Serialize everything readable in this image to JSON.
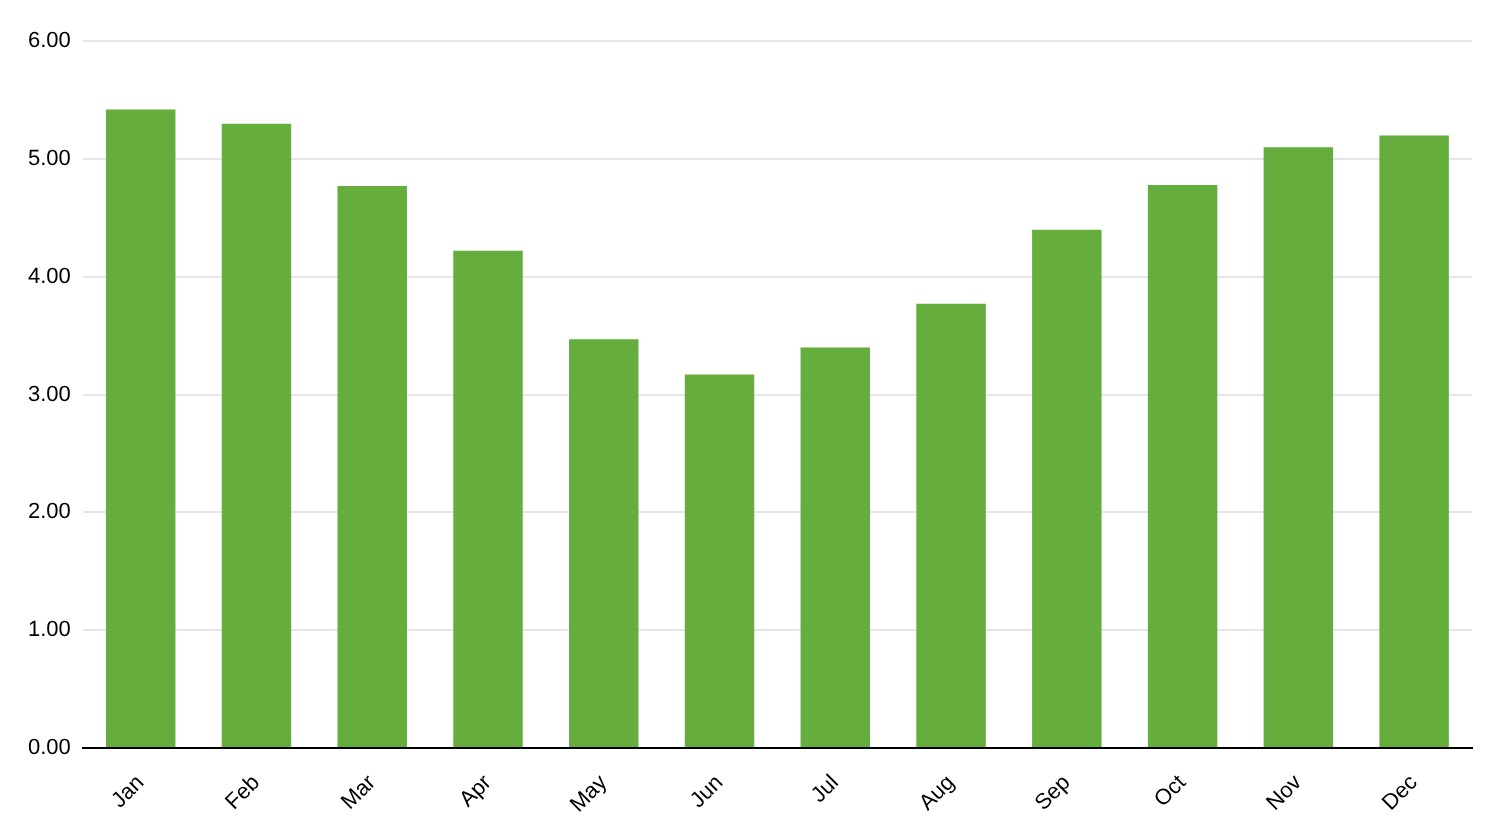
{
  "chart_data": {
    "type": "bar",
    "categories": [
      "Jan",
      "Feb",
      "Mar",
      "Apr",
      "May",
      "Jun",
      "Jul",
      "Aug",
      "Sep",
      "Oct",
      "Nov",
      "Dec"
    ],
    "values": [
      5.42,
      5.3,
      4.77,
      4.22,
      3.47,
      3.17,
      3.4,
      3.77,
      4.4,
      4.78,
      5.1,
      5.2
    ],
    "color": "#65ad3c",
    "ylim": [
      0,
      6
    ],
    "yticks": [
      {
        "value": 0,
        "label": "0.00"
      },
      {
        "value": 1,
        "label": "1.00"
      },
      {
        "value": 2,
        "label": "2.00"
      },
      {
        "value": 3,
        "label": "3.00"
      },
      {
        "value": 4,
        "label": "4.00"
      },
      {
        "value": 5,
        "label": "5.00"
      },
      {
        "value": 6,
        "label": "6.00"
      }
    ],
    "grid": "y",
    "legend": false
  }
}
